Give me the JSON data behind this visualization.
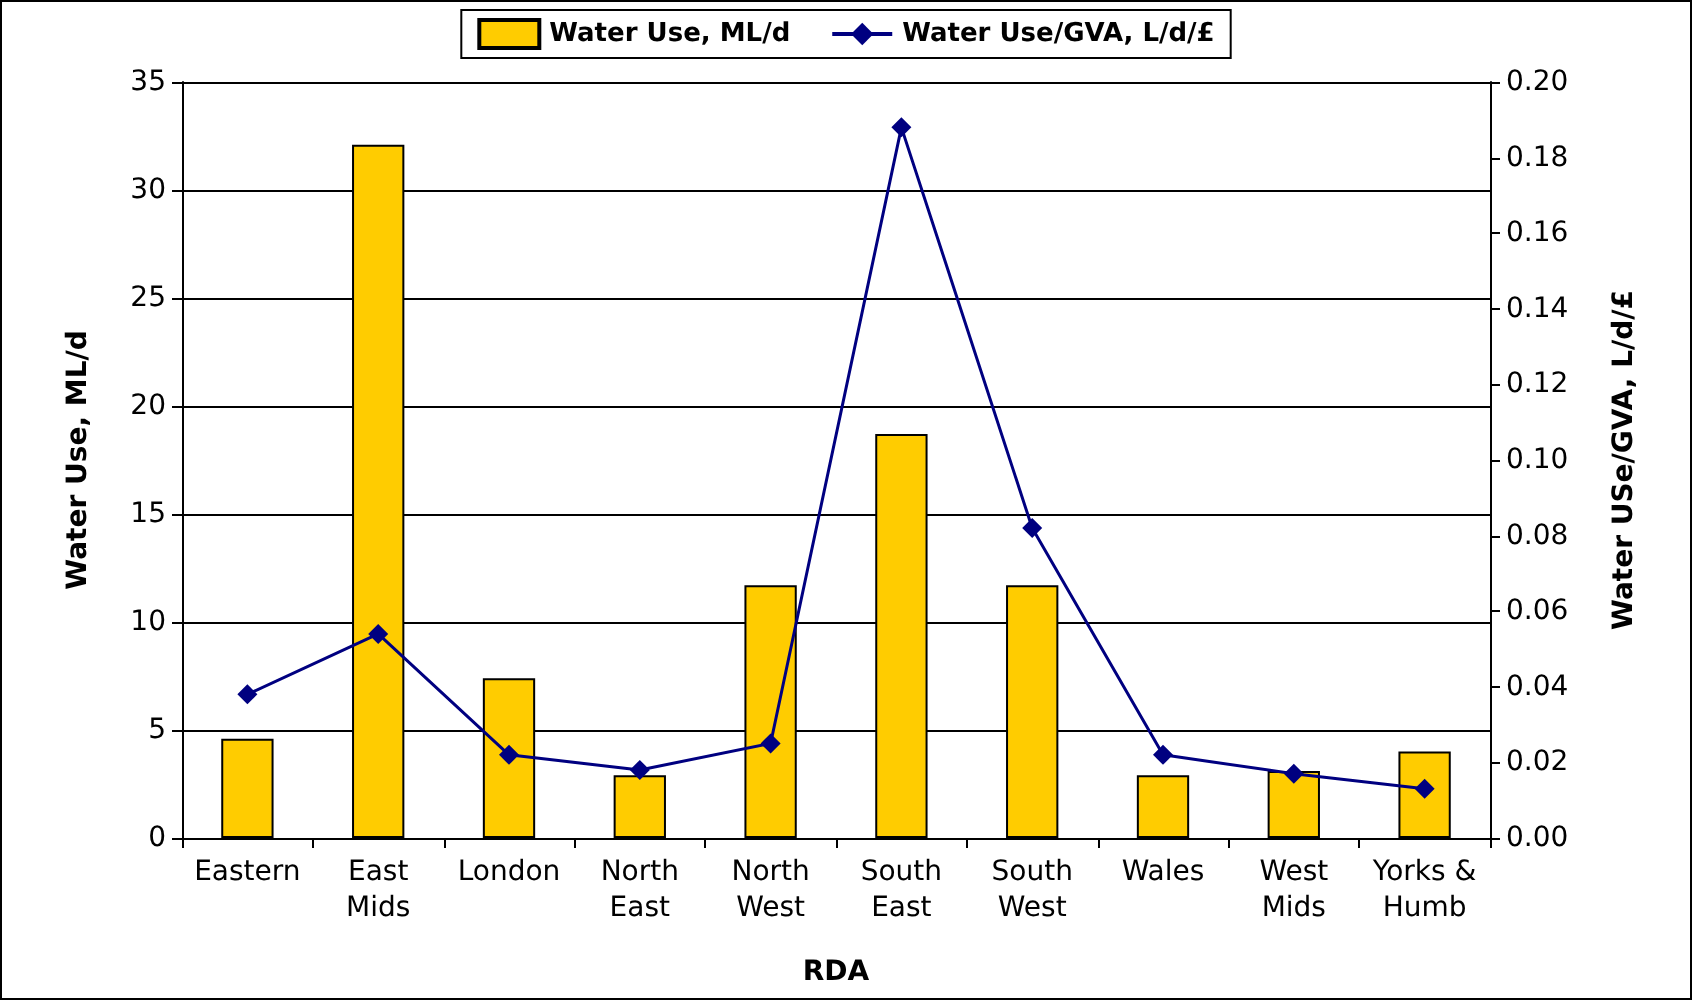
{
  "chart_data": {
    "type": "bar",
    "xlabel": "RDA",
    "ylabel": "Water Use, ML/d",
    "y2label": "Water USe/GVA, L/d/£",
    "categories": [
      "Eastern",
      "East\nMids",
      "London",
      "North\nEast",
      "North\nWest",
      "South\nEast",
      "South\nWest",
      "Wales",
      "West\nMids",
      "Yorks &\nHumb"
    ],
    "series": [
      {
        "name": "Water Use, ML/d",
        "color": "#ffcc00",
        "values": [
          4.6,
          32.1,
          7.4,
          2.9,
          11.7,
          18.7,
          11.7,
          2.9,
          3.1,
          4.0
        ]
      },
      {
        "name": "Water Use/GVA, L/d/£",
        "type": "line",
        "axis": "y2",
        "color": "#000080",
        "marker": "diamond",
        "values": [
          0.038,
          0.054,
          0.022,
          0.018,
          0.025,
          0.188,
          0.082,
          0.022,
          0.017,
          0.013
        ]
      }
    ],
    "ylim": [
      0,
      35
    ],
    "yticks": [
      0,
      5,
      10,
      15,
      20,
      25,
      30,
      35
    ],
    "y2lim": [
      0,
      0.2
    ],
    "y2ticks": [
      {
        "value": 0,
        "label": "0.00"
      },
      {
        "value": 0.02,
        "label": "0.02"
      },
      {
        "value": 0.04,
        "label": "0.04"
      },
      {
        "value": 0.06,
        "label": "0.06"
      },
      {
        "value": 0.08,
        "label": "0.08"
      },
      {
        "value": 0.1,
        "label": "0.10"
      },
      {
        "value": 0.12,
        "label": "0.12"
      },
      {
        "value": 0.14,
        "label": "0.14"
      },
      {
        "value": 0.16,
        "label": "0.16"
      },
      {
        "value": 0.18,
        "label": "0.18"
      },
      {
        "value": 0.2,
        "label": "0.20"
      }
    ],
    "grid": "y",
    "legend": "top"
  }
}
